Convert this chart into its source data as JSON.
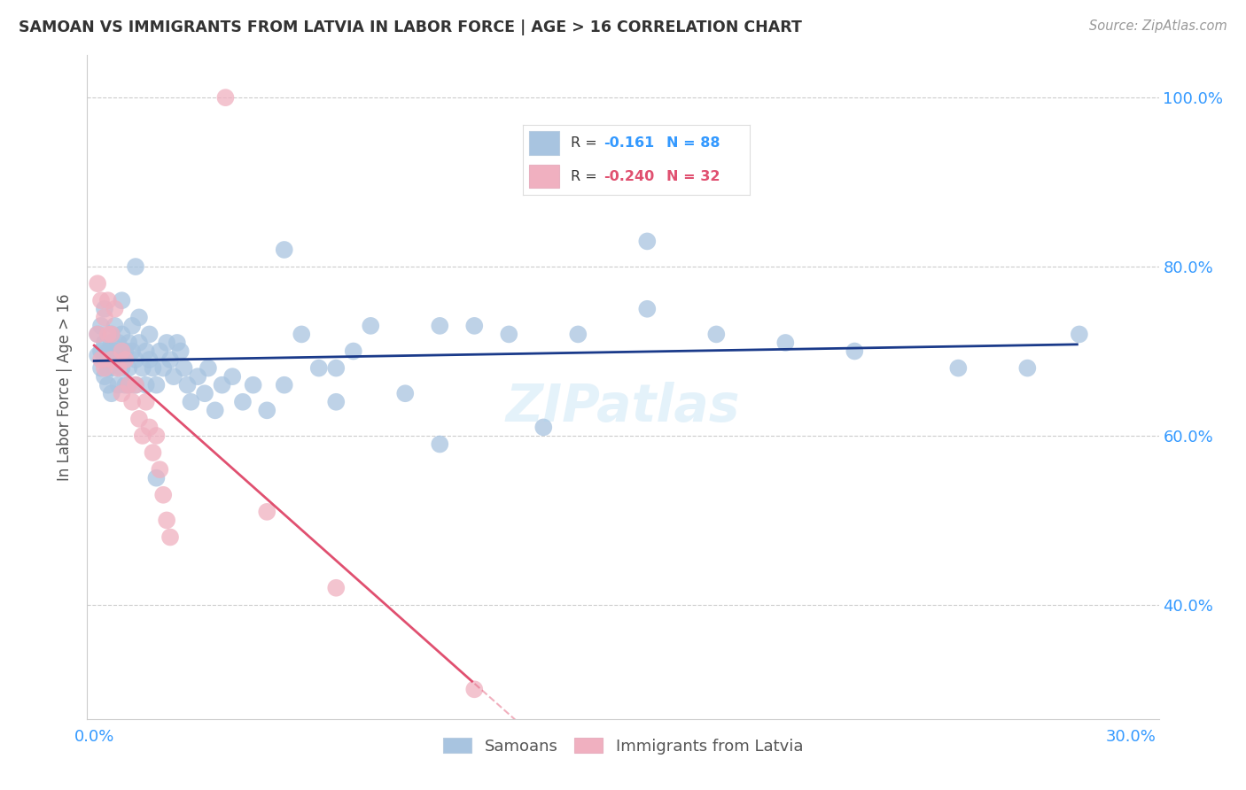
{
  "title": "SAMOAN VS IMMIGRANTS FROM LATVIA IN LABOR FORCE | AGE > 16 CORRELATION CHART",
  "source": "Source: ZipAtlas.com",
  "ylabel": "In Labor Force | Age > 16",
  "blue_color": "#a8c4e0",
  "pink_color": "#f0b0c0",
  "blue_line_color": "#1a3a8a",
  "pink_line_color": "#e05070",
  "axis_color": "#3399ff",
  "grid_color": "#cccccc",
  "title_color": "#333333",
  "watermark": "ZIPatlas",
  "legend_r1_label": "R = ",
  "legend_r1_val": "-0.161",
  "legend_r1_n": "N = 88",
  "legend_r2_label": "R = ",
  "legend_r2_val": "-0.240",
  "legend_r2_n": "N = 32",
  "samoans_x": [
    0.001,
    0.001,
    0.002,
    0.002,
    0.002,
    0.003,
    0.003,
    0.003,
    0.003,
    0.004,
    0.004,
    0.004,
    0.005,
    0.005,
    0.005,
    0.005,
    0.006,
    0.006,
    0.006,
    0.007,
    0.007,
    0.007,
    0.008,
    0.008,
    0.008,
    0.009,
    0.009,
    0.01,
    0.01,
    0.01,
    0.011,
    0.011,
    0.012,
    0.012,
    0.013,
    0.013,
    0.014,
    0.015,
    0.015,
    0.016,
    0.016,
    0.017,
    0.018,
    0.019,
    0.02,
    0.021,
    0.022,
    0.023,
    0.024,
    0.025,
    0.026,
    0.027,
    0.028,
    0.03,
    0.032,
    0.033,
    0.035,
    0.037,
    0.04,
    0.043,
    0.046,
    0.05,
    0.055,
    0.06,
    0.065,
    0.07,
    0.075,
    0.08,
    0.09,
    0.1,
    0.11,
    0.12,
    0.14,
    0.16,
    0.18,
    0.2,
    0.22,
    0.25,
    0.27,
    0.285,
    0.008,
    0.012,
    0.018,
    0.055,
    0.07,
    0.1,
    0.13,
    0.16
  ],
  "samoans_y": [
    0.695,
    0.72,
    0.7,
    0.68,
    0.73,
    0.69,
    0.71,
    0.67,
    0.75,
    0.68,
    0.7,
    0.66,
    0.71,
    0.69,
    0.72,
    0.65,
    0.7,
    0.68,
    0.73,
    0.69,
    0.71,
    0.66,
    0.7,
    0.68,
    0.72,
    0.66,
    0.7,
    0.71,
    0.68,
    0.66,
    0.7,
    0.73,
    0.69,
    0.66,
    0.71,
    0.74,
    0.68,
    0.7,
    0.66,
    0.69,
    0.72,
    0.68,
    0.66,
    0.7,
    0.68,
    0.71,
    0.69,
    0.67,
    0.71,
    0.7,
    0.68,
    0.66,
    0.64,
    0.67,
    0.65,
    0.68,
    0.63,
    0.66,
    0.67,
    0.64,
    0.66,
    0.63,
    0.66,
    0.72,
    0.68,
    0.64,
    0.7,
    0.73,
    0.65,
    0.73,
    0.73,
    0.72,
    0.72,
    0.83,
    0.72,
    0.71,
    0.7,
    0.68,
    0.68,
    0.72,
    0.76,
    0.8,
    0.55,
    0.82,
    0.68,
    0.59,
    0.61,
    0.75
  ],
  "latvia_x": [
    0.001,
    0.001,
    0.002,
    0.002,
    0.003,
    0.003,
    0.004,
    0.004,
    0.005,
    0.005,
    0.006,
    0.007,
    0.008,
    0.008,
    0.009,
    0.01,
    0.011,
    0.012,
    0.013,
    0.014,
    0.015,
    0.016,
    0.017,
    0.018,
    0.019,
    0.02,
    0.021,
    0.022,
    0.038,
    0.05,
    0.07,
    0.11
  ],
  "latvia_y": [
    0.78,
    0.72,
    0.76,
    0.69,
    0.74,
    0.68,
    0.72,
    0.76,
    0.69,
    0.72,
    0.75,
    0.68,
    0.7,
    0.65,
    0.69,
    0.66,
    0.64,
    0.66,
    0.62,
    0.6,
    0.64,
    0.61,
    0.58,
    0.6,
    0.56,
    0.53,
    0.5,
    0.48,
    1.0,
    0.51,
    0.42,
    0.3
  ],
  "xlim_min": -0.002,
  "xlim_max": 0.308,
  "ylim_min": 0.265,
  "ylim_max": 1.05,
  "yticks": [
    0.3,
    0.4,
    0.5,
    0.6,
    0.7,
    0.8,
    0.9,
    1.0
  ],
  "right_ytick_labels": [
    "",
    "40.0%",
    "",
    "60.0%",
    "",
    "80.0%",
    "",
    "100.0%"
  ],
  "xtick_positions": [
    0.0,
    0.05,
    0.1,
    0.15,
    0.2,
    0.25,
    0.3
  ],
  "xtick_labels": [
    "0.0%",
    "",
    "",
    "",
    "",
    "",
    "30.0%"
  ],
  "grid_yticks": [
    0.4,
    0.6,
    0.8,
    1.0
  ]
}
